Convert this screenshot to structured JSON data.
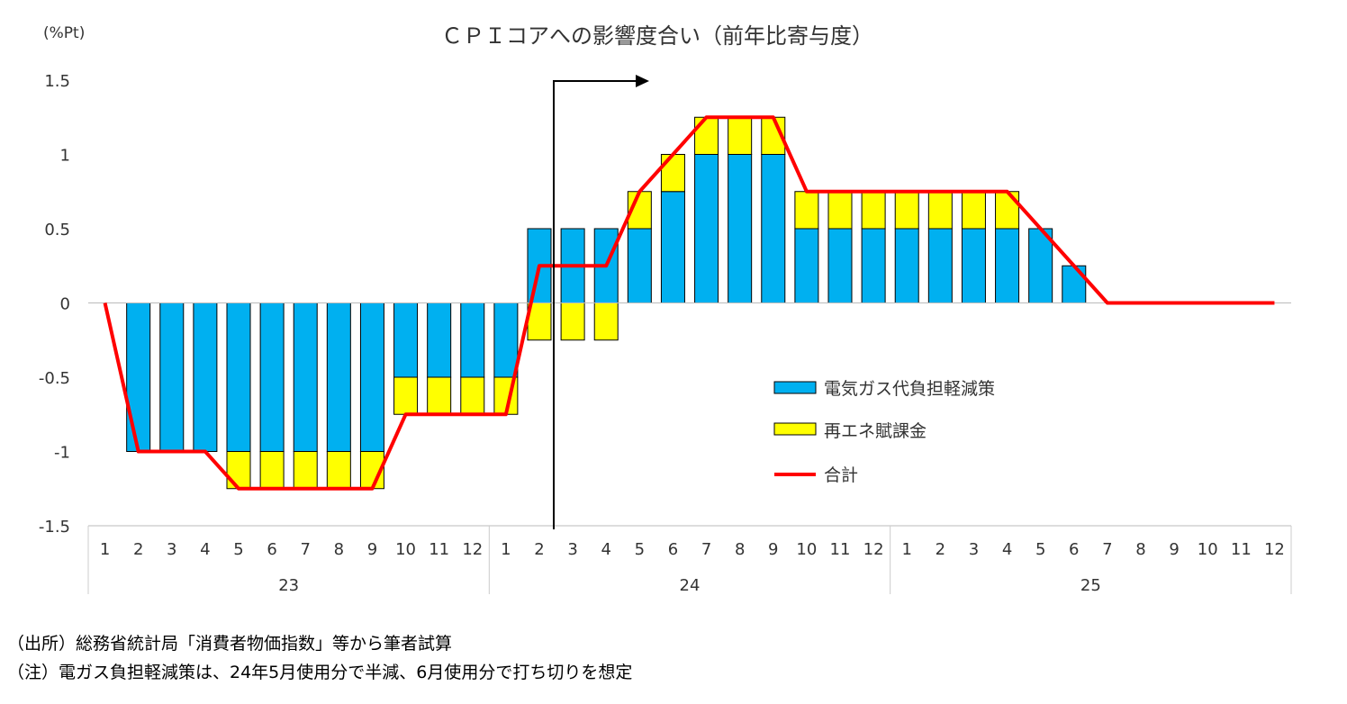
{
  "chart_data": {
    "type": "bar",
    "title": "ＣＰＩコアへの影響度合い（前年比寄与度）",
    "yunit": "(%Pt)",
    "ylim": [
      -1.5,
      1.5
    ],
    "yticks": [
      "1.5",
      "1",
      "0.5",
      "0",
      "-0.5",
      "-1",
      "-1.5"
    ],
    "ytick_values": [
      1.5,
      1,
      0.5,
      0,
      -0.5,
      -1,
      -1.5
    ],
    "stacked": true,
    "grid": false,
    "legend_position": "right-center",
    "months": [
      "1",
      "2",
      "3",
      "4",
      "5",
      "6",
      "7",
      "8",
      "9",
      "10",
      "11",
      "12",
      "1",
      "2",
      "3",
      "4",
      "5",
      "6",
      "7",
      "8",
      "9",
      "10",
      "11",
      "12",
      "1",
      "2",
      "3",
      "4",
      "5",
      "6",
      "7",
      "8",
      "9",
      "10",
      "11",
      "12"
    ],
    "years": [
      "23",
      "24",
      "25"
    ],
    "series": [
      {
        "name": "電気ガス代負担軽減策",
        "type": "bar",
        "color": "#00B0F0",
        "values": [
          0,
          -1,
          -1,
          -1,
          -1,
          -1,
          -1,
          -1,
          -1,
          -0.5,
          -0.5,
          -0.5,
          -0.5,
          0.5,
          0.5,
          0.5,
          0.5,
          0.75,
          1,
          1,
          1,
          0.5,
          0.5,
          0.5,
          0.5,
          0.5,
          0.5,
          0.5,
          0.5,
          0.25,
          0,
          0,
          0,
          0,
          0,
          0
        ]
      },
      {
        "name": "再エネ賦課金",
        "type": "bar",
        "color": "#FFFF00",
        "values": [
          0,
          0,
          0,
          0,
          -0.25,
          -0.25,
          -0.25,
          -0.25,
          -0.25,
          -0.25,
          -0.25,
          -0.25,
          -0.25,
          -0.25,
          -0.25,
          -0.25,
          0.25,
          0.25,
          0.25,
          0.25,
          0.25,
          0.25,
          0.25,
          0.25,
          0.25,
          0.25,
          0.25,
          0.25,
          0,
          0,
          0,
          0,
          0,
          0,
          0,
          0
        ]
      },
      {
        "name": "合計",
        "type": "line",
        "color": "#FF0000",
        "values": [
          0,
          -1,
          -1,
          -1,
          -1.25,
          -1.25,
          -1.25,
          -1.25,
          -1.25,
          -0.75,
          -0.75,
          -0.75,
          -0.75,
          0.25,
          0.25,
          0.25,
          0.75,
          1,
          1.25,
          1.25,
          1.25,
          0.75,
          0.75,
          0.75,
          0.75,
          0.75,
          0.75,
          0.75,
          0.5,
          0.25,
          0,
          0,
          0,
          0,
          0,
          0
        ]
      }
    ]
  },
  "notes": {
    "source": "（出所）総務省統計局「消費者物価指数」等から筆者試算",
    "note": "（注）電ガス負担軽減策は、24年5月使用分で半減、6月使用分で打ち切りを想定"
  }
}
